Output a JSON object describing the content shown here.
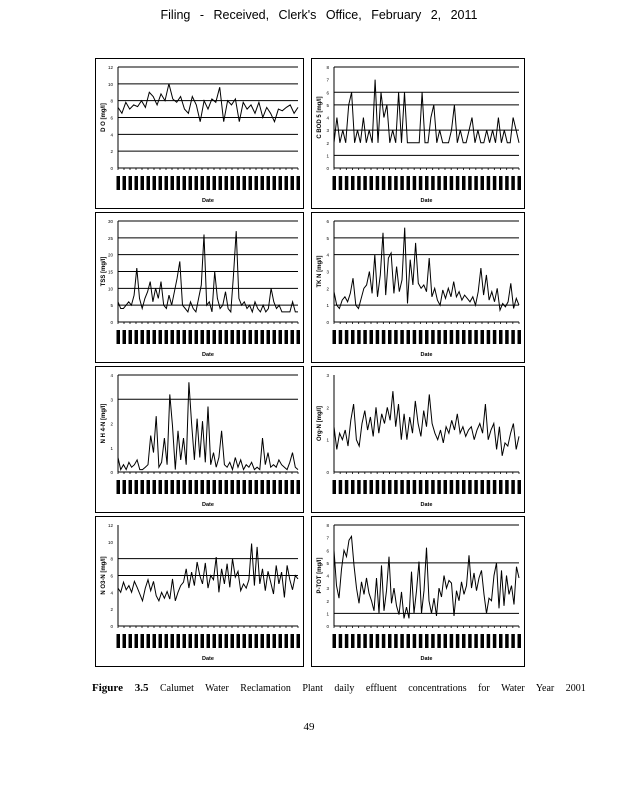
{
  "header": "Filing - Received, Clerk's Office, February 2, 2011",
  "caption": {
    "figure": "Figure 3.5",
    "text": "Calumet Water Reclamation Plant daily effluent concentrations for Water Year 2001"
  },
  "page_number": "49",
  "chart_data": [
    {
      "type": "line",
      "ylabel": "D O [mg/l]",
      "xlabel": "Date",
      "ylim": [
        0,
        12
      ],
      "yticks": [
        0,
        2,
        4,
        6,
        8,
        10,
        12
      ],
      "gridlines": [
        2,
        4,
        6,
        8,
        10,
        12
      ],
      "values": [
        7.2,
        6.5,
        7.8,
        7.0,
        7.5,
        7.3,
        8.0,
        7.2,
        9.0,
        8.5,
        7.5,
        8.8,
        8.0,
        10,
        8.2,
        7.8,
        8.5,
        7.0,
        6.5,
        8.5,
        7.5,
        5.5,
        8.0,
        7.0,
        8.2,
        7.8,
        9.6,
        5.5,
        8.0,
        7.5,
        8.2,
        5.5,
        7.8,
        7.0,
        7.5,
        6.5,
        7.8,
        6.0,
        7.2,
        6.5,
        5.5,
        7.0,
        6.8,
        7.2,
        7.5,
        6.5,
        7.2
      ]
    },
    {
      "type": "line",
      "ylabel": "C BOD 5 [mg/l]",
      "xlabel": "Date",
      "ylim": [
        0,
        8
      ],
      "yticks": [
        0,
        1,
        2,
        3,
        4,
        5,
        6,
        7,
        8
      ],
      "gridlines": [
        1,
        3,
        5,
        6,
        8
      ],
      "values": [
        2,
        4,
        2,
        3,
        2,
        5,
        6,
        2,
        3,
        2,
        4,
        2,
        3,
        2,
        7,
        2,
        6,
        4,
        5,
        2,
        3,
        2,
        6,
        2,
        6,
        2,
        2,
        2,
        2,
        2,
        6,
        2,
        2,
        4,
        5,
        2,
        3,
        2,
        2,
        2,
        3,
        5,
        2,
        3,
        2,
        2,
        3,
        4,
        2,
        3,
        2,
        2,
        3,
        2,
        3,
        2,
        4,
        2,
        3,
        2,
        2,
        4,
        3,
        2
      ]
    },
    {
      "type": "line",
      "ylabel": "TSS [mg/l]",
      "xlabel": "Date",
      "ylim": [
        0,
        30
      ],
      "yticks": [
        0,
        5,
        10,
        15,
        20,
        25,
        30
      ],
      "gridlines": [
        5,
        10,
        15,
        20,
        25,
        30
      ],
      "values": [
        6,
        4,
        4,
        5,
        6,
        5,
        8,
        16,
        7,
        4,
        7,
        9,
        12,
        6,
        10,
        7,
        12,
        5,
        4,
        8,
        5,
        9,
        13,
        18,
        5,
        4,
        3,
        6,
        4,
        3,
        7,
        11,
        26,
        5,
        6,
        3,
        15,
        7,
        4,
        5,
        9,
        4,
        3,
        14,
        27,
        7,
        5,
        6,
        4,
        5,
        3,
        6,
        4,
        3,
        5,
        3,
        4,
        10,
        6,
        4,
        5,
        3,
        3,
        3,
        3,
        6,
        3,
        3
      ]
    },
    {
      "type": "line",
      "ylabel": "TK N [mg/l]",
      "xlabel": "Date",
      "ylim": [
        0,
        6
      ],
      "yticks": [
        0,
        1,
        2,
        3,
        4,
        5,
        6
      ],
      "gridlines": [
        1,
        4,
        5,
        6
      ],
      "values": [
        1.8,
        1.0,
        0.8,
        1.3,
        1.5,
        1.2,
        1.7,
        2.6,
        1.0,
        0.8,
        1.4,
        2.0,
        2.2,
        3.0,
        1.7,
        4.0,
        1.5,
        2.8,
        5.3,
        1.6,
        3.8,
        4.1,
        1.7,
        3.3,
        1.8,
        2.5,
        5.6,
        1.1,
        3.7,
        2.2,
        4.7,
        2.3,
        2.0,
        2.2,
        1.8,
        3.8,
        1.5,
        2.0,
        1.3,
        1.0,
        1.9,
        1.4,
        2.0,
        1.5,
        2.4,
        1.5,
        1.8,
        1.3,
        1.6,
        1.4,
        1.2,
        1.5,
        1.0,
        1.8,
        3.2,
        1.6,
        2.8,
        1.3,
        1.8,
        1.2,
        2.0,
        0.7,
        1.1,
        0.9,
        1.2,
        2.3,
        0.8,
        1.4,
        1.0
      ]
    },
    {
      "type": "line",
      "ylabel": "N H 4-N [mg/l]",
      "xlabel": "Date",
      "ylim": [
        0,
        4
      ],
      "yticks": [
        0,
        1,
        2,
        3,
        4
      ],
      "gridlines": [
        3,
        4
      ],
      "values": [
        0.6,
        0.1,
        0.3,
        0.1,
        0.4,
        0.2,
        0.3,
        0.5,
        0.1,
        0.1,
        0.2,
        0.3,
        1.5,
        0.8,
        2.3,
        0.2,
        0.4,
        1.4,
        0.3,
        3.2,
        1.9,
        0.1,
        1.7,
        0.5,
        1.4,
        0.3,
        3.7,
        2.0,
        0.5,
        2.2,
        0.6,
        2.1,
        0.4,
        2.7,
        0.3,
        0.8,
        0.2,
        0.6,
        1.7,
        0.3,
        0.2,
        0.4,
        0.1,
        0.6,
        0.2,
        0.5,
        0.1,
        0.3,
        0.2,
        0.4,
        0.1,
        0.2,
        0.1,
        1.4,
        0.3,
        0.8,
        0.2,
        0.3,
        0.2,
        0.5,
        0.3,
        0.2,
        0.1,
        0.4,
        0.8,
        0.2,
        0.1
      ]
    },
    {
      "type": "line",
      "ylabel": "Org-N [mg/l]",
      "xlabel": "Date",
      "ylim": [
        0,
        3
      ],
      "yticks": [
        0,
        1,
        2,
        3
      ],
      "gridlines": [],
      "values": [
        1.4,
        0.7,
        1.2,
        1.0,
        1.3,
        0.8,
        1.6,
        2.1,
        1.0,
        0.8,
        1.5,
        1.9,
        1.3,
        1.7,
        1.1,
        2.0,
        1.2,
        1.8,
        1.5,
        2.0,
        1.6,
        2.5,
        1.4,
        2.1,
        1.0,
        1.8,
        1.0,
        1.7,
        1.2,
        2.2,
        1.5,
        1.1,
        1.9,
        1.4,
        2.4,
        1.5,
        1.2,
        1.0,
        1.3,
        0.9,
        1.4,
        1.2,
        1.6,
        1.3,
        1.8,
        1.2,
        1.4,
        1.1,
        1.3,
        1.4,
        1.0,
        1.3,
        1.5,
        1.2,
        2.1,
        1.0,
        1.3,
        1.5,
        0.7,
        1.4,
        0.5,
        0.9,
        0.8,
        1.2,
        1.5,
        0.7,
        1.1
      ]
    },
    {
      "type": "line",
      "ylabel": "N O3-N [mg/l]",
      "xlabel": "Date",
      "ylim": [
        0,
        12
      ],
      "yticks": [
        0,
        2,
        4,
        6,
        8,
        10,
        12
      ],
      "gridlines": [
        6,
        8
      ],
      "values": [
        4.5,
        4.0,
        5.2,
        4.3,
        4.8,
        4.0,
        5.3,
        4.6,
        3.8,
        3.0,
        4.5,
        5.5,
        4.2,
        5.3,
        3.6,
        3.0,
        4.0,
        3.3,
        4.1,
        3.2,
        5.6,
        3.0,
        4.0,
        4.8,
        5.2,
        6.8,
        4.5,
        6.4,
        4.8,
        7.6,
        6.0,
        5.0,
        7.5,
        4.5,
        6.0,
        5.5,
        8.2,
        4.0,
        6.8,
        5.0,
        7.4,
        4.6,
        8.0,
        5.8,
        6.5,
        4.2,
        5.0,
        4.5,
        5.5,
        9.8,
        4.8,
        9.4,
        5.0,
        6.8,
        4.2,
        6.5,
        5.2,
        3.8,
        7.2,
        5.0,
        6.4,
        3.4,
        7.2,
        5.5,
        4.3,
        6.0,
        5.6
      ]
    },
    {
      "type": "line",
      "ylabel": "P-TOT [mg/l]",
      "xlabel": "Date",
      "ylim": [
        0,
        8
      ],
      "yticks": [
        0,
        1,
        2,
        3,
        4,
        5,
        6,
        7,
        8
      ],
      "gridlines": [
        1,
        5,
        8
      ],
      "values": [
        6.0,
        3.2,
        2.2,
        4.5,
        6.0,
        5.5,
        6.8,
        7.1,
        4.8,
        3.0,
        1.8,
        3.5,
        2.5,
        3.8,
        2.6,
        2.0,
        1.2,
        3.8,
        1.0,
        4.8,
        1.2,
        2.8,
        5.5,
        1.8,
        3.0,
        1.6,
        0.9,
        2.7,
        0.6,
        1.5,
        0.6,
        4.3,
        1.0,
        2.8,
        5.1,
        1.0,
        2.8,
        6.2,
        2.0,
        1.0,
        2.2,
        0.8,
        3.0,
        2.3,
        4.0,
        3.0,
        3.6,
        3.4,
        0.8,
        2.8,
        2.0,
        3.5,
        2.5,
        3.2,
        5.6,
        3.0,
        4.2,
        2.8,
        3.8,
        4.4,
        2.5,
        1.0,
        2.2,
        2.0,
        4.0,
        5.0,
        1.4,
        4.4,
        1.6,
        4.0,
        2.5,
        3.2,
        1.7,
        4.7,
        3.8
      ]
    }
  ]
}
